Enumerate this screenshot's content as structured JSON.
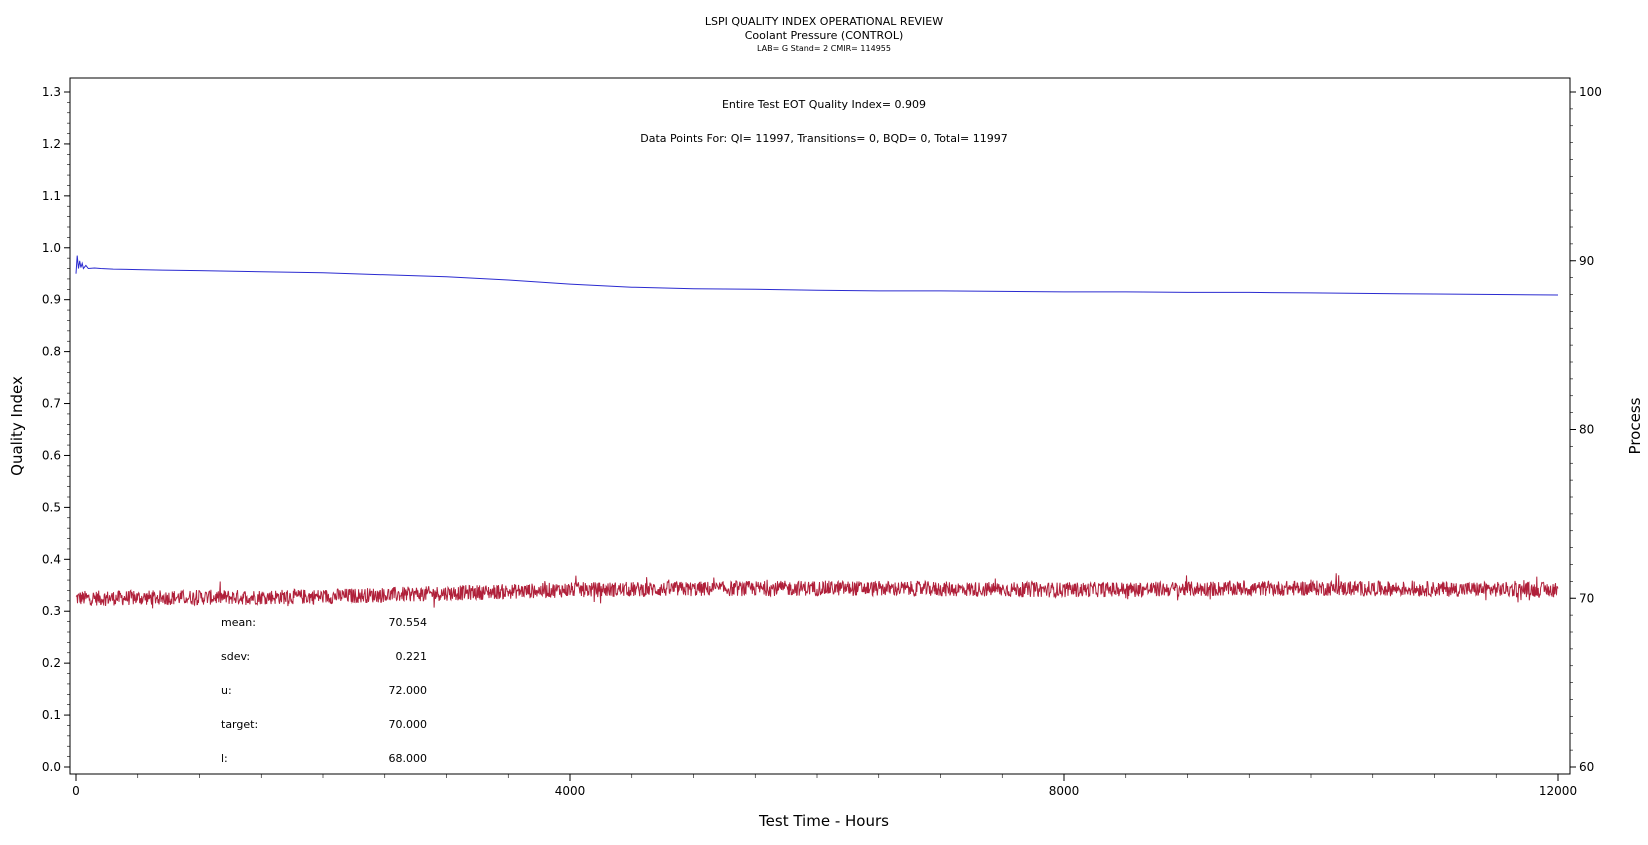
{
  "chart_data": {
    "type": "line",
    "title": "LSPI QUALITY INDEX OPERATIONAL REVIEW",
    "subtitle": "Coolant Pressure (CONTROL)",
    "subtitle2": "LAB= G Stand= 2 CMIR= 114955",
    "annotations": [
      "Entire Test EOT Quality Index=   0.909",
      "Data Points For: QI= 11997, Transitions=      0, BQD=      0, Total= 11997"
    ],
    "xlabel": "Test Time - Hours",
    "ylabel": "Quality Index",
    "y2label": "Process",
    "xlim": [
      0,
      12000
    ],
    "ylim": [
      0.0,
      1.3
    ],
    "y2lim": [
      60,
      100
    ],
    "x_ticks": [
      0,
      4000,
      8000,
      12000
    ],
    "y_ticks": [
      "0.0",
      "0.1",
      "0.2",
      "0.3",
      "0.4",
      "0.5",
      "0.6",
      "0.7",
      "0.8",
      "0.9",
      "1.0",
      "1.1",
      "1.2",
      "1.3"
    ],
    "y2_ticks": [
      "60",
      "70",
      "80",
      "90",
      "100"
    ],
    "series": [
      {
        "axis": "left",
        "color": "#2b2bd0",
        "x": [
          0,
          10,
          20,
          30,
          40,
          50,
          60,
          80,
          100,
          150,
          200,
          300,
          500,
          700,
          1000,
          1500,
          2000,
          2500,
          3000,
          3500,
          4000,
          4500,
          5000,
          5500,
          6000,
          6500,
          7000,
          7500,
          8000,
          8500,
          9000,
          9500,
          10000,
          10500,
          11000,
          11500,
          12000
        ],
        "values": [
          0.95,
          0.985,
          0.96,
          0.975,
          0.962,
          0.97,
          0.96,
          0.966,
          0.96,
          0.961,
          0.96,
          0.959,
          0.958,
          0.957,
          0.956,
          0.954,
          0.952,
          0.948,
          0.944,
          0.938,
          0.93,
          0.924,
          0.921,
          0.92,
          0.918,
          0.917,
          0.917,
          0.916,
          0.915,
          0.915,
          0.914,
          0.914,
          0.913,
          0.912,
          0.911,
          0.91,
          0.909
        ]
      },
      {
        "axis": "right",
        "color": "#b0203a",
        "x": [
          0,
          2000,
          3000,
          4000,
          6000,
          8000,
          10000,
          12000
        ],
        "values": [
          70.0,
          70.1,
          70.3,
          70.5,
          70.6,
          70.5,
          70.6,
          70.5
        ]
      }
    ],
    "stats": [
      {
        "label": "mean:",
        "value": "70.554"
      },
      {
        "label": "sdev:",
        "value": "0.221"
      },
      {
        "label": "u:",
        "value": "72.000"
      },
      {
        "label": "target:",
        "value": "70.000"
      },
      {
        "label": "l:",
        "value": "68.000"
      }
    ],
    "grid": false
  }
}
